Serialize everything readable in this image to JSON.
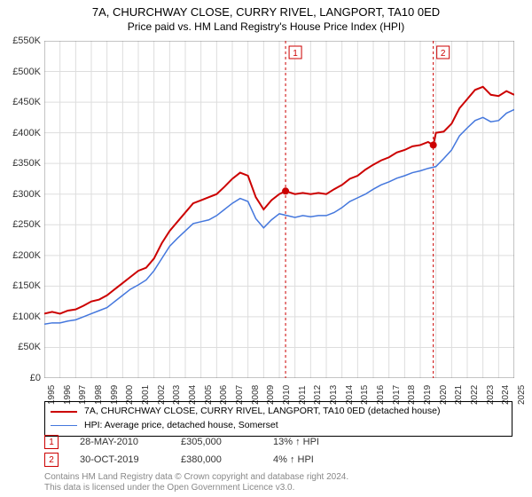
{
  "title": "7A, CHURCHWAY CLOSE, CURRY RIVEL, LANGPORT, TA10 0ED",
  "subtitle": "Price paid vs. HM Land Registry's House Price Index (HPI)",
  "chart": {
    "type": "line",
    "xlim": [
      1995,
      2025
    ],
    "ylim": [
      0,
      550000
    ],
    "ytick_step": 50000,
    "ytick_labels": [
      "£0",
      "£50K",
      "£100K",
      "£150K",
      "£200K",
      "£250K",
      "£300K",
      "£350K",
      "£400K",
      "£450K",
      "£500K",
      "£550K"
    ],
    "xtick_step": 1,
    "xtick_labels": [
      "1995",
      "1996",
      "1997",
      "1998",
      "1999",
      "2000",
      "2001",
      "2002",
      "2003",
      "2004",
      "2005",
      "2006",
      "2007",
      "2008",
      "2009",
      "2010",
      "2011",
      "2012",
      "2013",
      "2014",
      "2015",
      "2016",
      "2017",
      "2018",
      "2019",
      "2020",
      "2021",
      "2022",
      "2023",
      "2024",
      "2025"
    ],
    "grid_color": "#dddddd",
    "background_color": "#ffffff",
    "series": [
      {
        "name": "property",
        "label": "7A, CHURCHWAY CLOSE, CURRY RIVEL, LANGPORT, TA10 0ED (detached house)",
        "color": "#cc0000",
        "width": 2,
        "data": [
          [
            1995,
            105000
          ],
          [
            1995.5,
            108000
          ],
          [
            1996,
            105000
          ],
          [
            1996.5,
            110000
          ],
          [
            1997,
            112000
          ],
          [
            1997.5,
            118000
          ],
          [
            1998,
            125000
          ],
          [
            1998.5,
            128000
          ],
          [
            1999,
            135000
          ],
          [
            1999.5,
            145000
          ],
          [
            2000,
            155000
          ],
          [
            2000.5,
            165000
          ],
          [
            2001,
            175000
          ],
          [
            2001.5,
            180000
          ],
          [
            2002,
            195000
          ],
          [
            2002.5,
            220000
          ],
          [
            2003,
            240000
          ],
          [
            2003.5,
            255000
          ],
          [
            2004,
            270000
          ],
          [
            2004.5,
            285000
          ],
          [
            2005,
            290000
          ],
          [
            2005.5,
            295000
          ],
          [
            2006,
            300000
          ],
          [
            2006.5,
            312000
          ],
          [
            2007,
            325000
          ],
          [
            2007.5,
            335000
          ],
          [
            2008,
            330000
          ],
          [
            2008.5,
            295000
          ],
          [
            2009,
            275000
          ],
          [
            2009.5,
            290000
          ],
          [
            2010,
            300000
          ],
          [
            2010.4,
            305000
          ],
          [
            2011,
            300000
          ],
          [
            2011.5,
            302000
          ],
          [
            2012,
            300000
          ],
          [
            2012.5,
            302000
          ],
          [
            2013,
            300000
          ],
          [
            2013.5,
            308000
          ],
          [
            2014,
            315000
          ],
          [
            2014.5,
            325000
          ],
          [
            2015,
            330000
          ],
          [
            2015.5,
            340000
          ],
          [
            2016,
            348000
          ],
          [
            2016.5,
            355000
          ],
          [
            2017,
            360000
          ],
          [
            2017.5,
            368000
          ],
          [
            2018,
            372000
          ],
          [
            2018.5,
            378000
          ],
          [
            2019,
            380000
          ],
          [
            2019.5,
            385000
          ],
          [
            2019.83,
            380000
          ],
          [
            2020,
            400000
          ],
          [
            2020.5,
            402000
          ],
          [
            2021,
            415000
          ],
          [
            2021.5,
            440000
          ],
          [
            2022,
            455000
          ],
          [
            2022.5,
            470000
          ],
          [
            2023,
            475000
          ],
          [
            2023.5,
            462000
          ],
          [
            2024,
            460000
          ],
          [
            2024.5,
            468000
          ],
          [
            2025,
            462000
          ]
        ]
      },
      {
        "name": "hpi",
        "label": "HPI: Average price, detached house, Somerset",
        "color": "#4477dd",
        "width": 1.5,
        "data": [
          [
            1995,
            88000
          ],
          [
            1995.5,
            90000
          ],
          [
            1996,
            90000
          ],
          [
            1996.5,
            93000
          ],
          [
            1997,
            95000
          ],
          [
            1997.5,
            100000
          ],
          [
            1998,
            105000
          ],
          [
            1998.5,
            110000
          ],
          [
            1999,
            115000
          ],
          [
            1999.5,
            125000
          ],
          [
            2000,
            135000
          ],
          [
            2000.5,
            145000
          ],
          [
            2001,
            152000
          ],
          [
            2001.5,
            160000
          ],
          [
            2002,
            175000
          ],
          [
            2002.5,
            195000
          ],
          [
            2003,
            215000
          ],
          [
            2003.5,
            228000
          ],
          [
            2004,
            240000
          ],
          [
            2004.5,
            252000
          ],
          [
            2005,
            255000
          ],
          [
            2005.5,
            258000
          ],
          [
            2006,
            265000
          ],
          [
            2006.5,
            275000
          ],
          [
            2007,
            285000
          ],
          [
            2007.5,
            293000
          ],
          [
            2008,
            288000
          ],
          [
            2008.5,
            260000
          ],
          [
            2009,
            245000
          ],
          [
            2009.5,
            258000
          ],
          [
            2010,
            268000
          ],
          [
            2010.5,
            265000
          ],
          [
            2011,
            262000
          ],
          [
            2011.5,
            265000
          ],
          [
            2012,
            263000
          ],
          [
            2012.5,
            265000
          ],
          [
            2013,
            265000
          ],
          [
            2013.5,
            270000
          ],
          [
            2014,
            278000
          ],
          [
            2014.5,
            288000
          ],
          [
            2015,
            294000
          ],
          [
            2015.5,
            300000
          ],
          [
            2016,
            308000
          ],
          [
            2016.5,
            315000
          ],
          [
            2017,
            320000
          ],
          [
            2017.5,
            326000
          ],
          [
            2018,
            330000
          ],
          [
            2018.5,
            335000
          ],
          [
            2019,
            338000
          ],
          [
            2019.5,
            342000
          ],
          [
            2020,
            345000
          ],
          [
            2020.5,
            358000
          ],
          [
            2021,
            372000
          ],
          [
            2021.5,
            395000
          ],
          [
            2022,
            408000
          ],
          [
            2022.5,
            420000
          ],
          [
            2023,
            425000
          ],
          [
            2023.5,
            418000
          ],
          [
            2024,
            420000
          ],
          [
            2024.5,
            432000
          ],
          [
            2025,
            438000
          ]
        ]
      }
    ],
    "markers": [
      {
        "n": "1",
        "x": 2010.4,
        "y": 305000,
        "line_color": "#cc0000",
        "date": "28-MAY-2010",
        "price": "£305,000",
        "pct": "13% ↑ HPI"
      },
      {
        "n": "2",
        "x": 2019.83,
        "y": 380000,
        "line_color": "#cc0000",
        "date": "30-OCT-2019",
        "price": "£380,000",
        "pct": "4% ↑ HPI"
      }
    ]
  },
  "footnote1": "Contains HM Land Registry data © Crown copyright and database right 2024.",
  "footnote2": "This data is licensed under the Open Government Licence v3.0."
}
